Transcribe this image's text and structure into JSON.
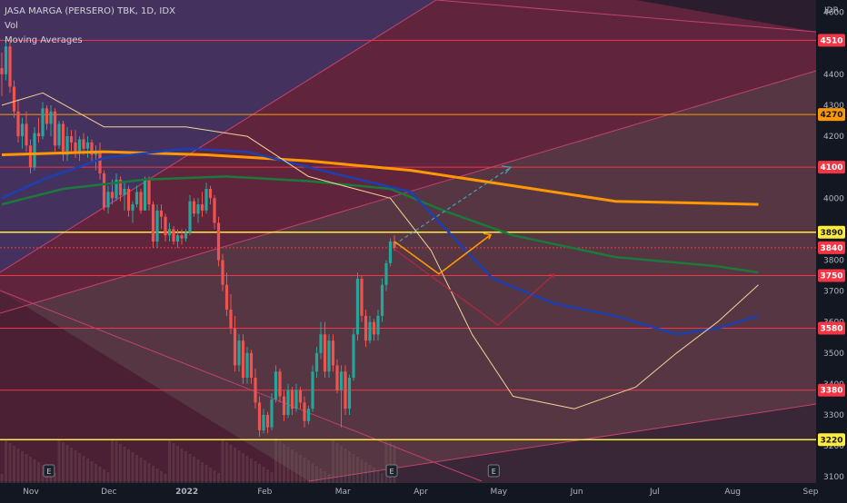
{
  "legend": {
    "title": "JASA MARGA (PERSERO) TBK, 1D, IDX",
    "vol": "Vol",
    "ma": "Moving Averages"
  },
  "currency": "IDR",
  "colors": {
    "background": "#131722",
    "up": "#26a69a",
    "down": "#ef5350",
    "level_red": "#f23645",
    "level_yellow": "#ffeb3b",
    "level_orange": "#ff9800",
    "ma_orange": "#ff9800",
    "ma_blue": "#1e3fb0",
    "ma_green": "#1b7a3a",
    "ma_thin": "#f4d39a",
    "projection_teal": "#4aa3b5",
    "projection_orange": "#ff9800",
    "projection_red": "#b2283c"
  },
  "chart_data": {
    "type": "candlestick",
    "x_labels": [
      "Nov",
      "Dec",
      "2022",
      "Feb",
      "Mar",
      "Apr",
      "May",
      "Jun",
      "Jul",
      "Aug",
      "Sep"
    ],
    "y_ticks": [
      3100,
      3200,
      3300,
      3400,
      3500,
      3600,
      3700,
      3800,
      3900,
      4000,
      4100,
      4200,
      4300,
      4400,
      4500,
      4600
    ],
    "ylim": [
      3080,
      4640
    ],
    "last_price": 3840,
    "levels": [
      {
        "value": 4510,
        "label": "4510",
        "color": "red"
      },
      {
        "value": 4270,
        "label": "4270",
        "color": "orange"
      },
      {
        "value": 4100,
        "label": "4100",
        "color": "red"
      },
      {
        "value": 3890,
        "label": "3890",
        "color": "yellow"
      },
      {
        "value": 3750,
        "label": "3750",
        "color": "red"
      },
      {
        "value": 3580,
        "label": "3580",
        "color": "red"
      },
      {
        "value": 3380,
        "label": "3380",
        "color": "red"
      },
      {
        "value": 3220,
        "label": "3220",
        "color": "yellow"
      }
    ],
    "candles": [
      {
        "o": 4420,
        "h": 4470,
        "l": 4330,
        "c": 4400
      },
      {
        "o": 4400,
        "h": 4510,
        "l": 4380,
        "c": 4490
      },
      {
        "o": 4490,
        "h": 4510,
        "l": 4340,
        "c": 4360
      },
      {
        "o": 4360,
        "h": 4380,
        "l": 4260,
        "c": 4280
      },
      {
        "o": 4280,
        "h": 4320,
        "l": 4180,
        "c": 4200
      },
      {
        "o": 4200,
        "h": 4260,
        "l": 4160,
        "c": 4240
      },
      {
        "o": 4240,
        "h": 4280,
        "l": 4150,
        "c": 4170
      },
      {
        "o": 4170,
        "h": 4190,
        "l": 4080,
        "c": 4100
      },
      {
        "o": 4100,
        "h": 4230,
        "l": 4090,
        "c": 4210
      },
      {
        "o": 4210,
        "h": 4260,
        "l": 4180,
        "c": 4200
      },
      {
        "o": 4200,
        "h": 4310,
        "l": 4190,
        "c": 4290
      },
      {
        "o": 4290,
        "h": 4300,
        "l": 4220,
        "c": 4240
      },
      {
        "o": 4240,
        "h": 4300,
        "l": 4200,
        "c": 4280
      },
      {
        "o": 4280,
        "h": 4290,
        "l": 4150,
        "c": 4170
      },
      {
        "o": 4170,
        "h": 4250,
        "l": 4160,
        "c": 4240
      },
      {
        "o": 4240,
        "h": 4250,
        "l": 4120,
        "c": 4140
      },
      {
        "o": 4140,
        "h": 4230,
        "l": 4120,
        "c": 4200
      },
      {
        "o": 4200,
        "h": 4220,
        "l": 4150,
        "c": 4180
      },
      {
        "o": 4180,
        "h": 4220,
        "l": 4130,
        "c": 4150
      },
      {
        "o": 4150,
        "h": 4200,
        "l": 4120,
        "c": 4190
      },
      {
        "o": 4190,
        "h": 4210,
        "l": 4140,
        "c": 4160
      },
      {
        "o": 4160,
        "h": 4200,
        "l": 4130,
        "c": 4180
      },
      {
        "o": 4180,
        "h": 4190,
        "l": 4120,
        "c": 4140
      },
      {
        "o": 4140,
        "h": 4170,
        "l": 4090,
        "c": 4150
      },
      {
        "o": 4150,
        "h": 4180,
        "l": 4060,
        "c": 4080
      },
      {
        "o": 4080,
        "h": 4090,
        "l": 3960,
        "c": 3970
      },
      {
        "o": 3970,
        "h": 4040,
        "l": 3950,
        "c": 4020
      },
      {
        "o": 4020,
        "h": 4060,
        "l": 3980,
        "c": 4000
      },
      {
        "o": 4000,
        "h": 4080,
        "l": 3990,
        "c": 4060
      },
      {
        "o": 4060,
        "h": 4070,
        "l": 3990,
        "c": 4010
      },
      {
        "o": 4010,
        "h": 4050,
        "l": 3960,
        "c": 4030
      },
      {
        "o": 4030,
        "h": 4040,
        "l": 3940,
        "c": 3960
      },
      {
        "o": 3960,
        "h": 3990,
        "l": 3920,
        "c": 3980
      },
      {
        "o": 3980,
        "h": 4040,
        "l": 3970,
        "c": 4020
      },
      {
        "o": 4020,
        "h": 4030,
        "l": 3950,
        "c": 3960
      },
      {
        "o": 3960,
        "h": 4070,
        "l": 3960,
        "c": 4060
      },
      {
        "o": 4060,
        "h": 4070,
        "l": 3960,
        "c": 3980
      },
      {
        "o": 3980,
        "h": 3990,
        "l": 3840,
        "c": 3860
      },
      {
        "o": 3860,
        "h": 3980,
        "l": 3840,
        "c": 3960
      },
      {
        "o": 3960,
        "h": 3980,
        "l": 3900,
        "c": 3940
      },
      {
        "o": 3940,
        "h": 3950,
        "l": 3860,
        "c": 3880
      },
      {
        "o": 3880,
        "h": 3920,
        "l": 3860,
        "c": 3900
      },
      {
        "o": 3900,
        "h": 3910,
        "l": 3850,
        "c": 3860
      },
      {
        "o": 3860,
        "h": 3900,
        "l": 3840,
        "c": 3880
      },
      {
        "o": 3880,
        "h": 3900,
        "l": 3850,
        "c": 3870
      },
      {
        "o": 3870,
        "h": 3900,
        "l": 3860,
        "c": 3890
      },
      {
        "o": 3890,
        "h": 4010,
        "l": 3880,
        "c": 3990
      },
      {
        "o": 3990,
        "h": 4000,
        "l": 3940,
        "c": 3950
      },
      {
        "o": 3950,
        "h": 4000,
        "l": 3920,
        "c": 3980
      },
      {
        "o": 3980,
        "h": 4020,
        "l": 3940,
        "c": 3960
      },
      {
        "o": 3960,
        "h": 4050,
        "l": 3950,
        "c": 4030
      },
      {
        "o": 4030,
        "h": 4040,
        "l": 3980,
        "c": 4000
      },
      {
        "o": 4000,
        "h": 4010,
        "l": 3900,
        "c": 3920
      },
      {
        "o": 3920,
        "h": 3940,
        "l": 3780,
        "c": 3800
      },
      {
        "o": 3800,
        "h": 3820,
        "l": 3700,
        "c": 3720
      },
      {
        "o": 3720,
        "h": 3760,
        "l": 3620,
        "c": 3640
      },
      {
        "o": 3640,
        "h": 3690,
        "l": 3560,
        "c": 3580
      },
      {
        "o": 3580,
        "h": 3620,
        "l": 3440,
        "c": 3460
      },
      {
        "o": 3460,
        "h": 3560,
        "l": 3440,
        "c": 3540
      },
      {
        "o": 3540,
        "h": 3560,
        "l": 3400,
        "c": 3420
      },
      {
        "o": 3420,
        "h": 3520,
        "l": 3400,
        "c": 3500
      },
      {
        "o": 3500,
        "h": 3510,
        "l": 3400,
        "c": 3420
      },
      {
        "o": 3420,
        "h": 3450,
        "l": 3320,
        "c": 3340
      },
      {
        "o": 3340,
        "h": 3360,
        "l": 3230,
        "c": 3250
      },
      {
        "o": 3250,
        "h": 3320,
        "l": 3240,
        "c": 3300
      },
      {
        "o": 3300,
        "h": 3310,
        "l": 3240,
        "c": 3260
      },
      {
        "o": 3260,
        "h": 3370,
        "l": 3250,
        "c": 3350
      },
      {
        "o": 3350,
        "h": 3460,
        "l": 3340,
        "c": 3440
      },
      {
        "o": 3440,
        "h": 3450,
        "l": 3340,
        "c": 3360
      },
      {
        "o": 3360,
        "h": 3380,
        "l": 3280,
        "c": 3300
      },
      {
        "o": 3300,
        "h": 3400,
        "l": 3290,
        "c": 3380
      },
      {
        "o": 3380,
        "h": 3390,
        "l": 3300,
        "c": 3320
      },
      {
        "o": 3320,
        "h": 3400,
        "l": 3310,
        "c": 3380
      },
      {
        "o": 3380,
        "h": 3390,
        "l": 3320,
        "c": 3340
      },
      {
        "o": 3340,
        "h": 3360,
        "l": 3260,
        "c": 3280
      },
      {
        "o": 3280,
        "h": 3330,
        "l": 3270,
        "c": 3320
      },
      {
        "o": 3320,
        "h": 3460,
        "l": 3310,
        "c": 3440
      },
      {
        "o": 3440,
        "h": 3520,
        "l": 3420,
        "c": 3500
      },
      {
        "o": 3500,
        "h": 3600,
        "l": 3480,
        "c": 3560
      },
      {
        "o": 3560,
        "h": 3600,
        "l": 3420,
        "c": 3440
      },
      {
        "o": 3440,
        "h": 3560,
        "l": 3420,
        "c": 3540
      },
      {
        "o": 3540,
        "h": 3560,
        "l": 3440,
        "c": 3460
      },
      {
        "o": 3460,
        "h": 3480,
        "l": 3370,
        "c": 3380
      },
      {
        "o": 3380,
        "h": 3460,
        "l": 3260,
        "c": 3440
      },
      {
        "o": 3440,
        "h": 3460,
        "l": 3300,
        "c": 3320
      },
      {
        "o": 3320,
        "h": 3430,
        "l": 3300,
        "c": 3420
      },
      {
        "o": 3420,
        "h": 3580,
        "l": 3410,
        "c": 3560
      },
      {
        "o": 3560,
        "h": 3760,
        "l": 3540,
        "c": 3740
      },
      {
        "o": 3740,
        "h": 3750,
        "l": 3600,
        "c": 3620
      },
      {
        "o": 3620,
        "h": 3640,
        "l": 3520,
        "c": 3540
      },
      {
        "o": 3540,
        "h": 3620,
        "l": 3530,
        "c": 3600
      },
      {
        "o": 3600,
        "h": 3610,
        "l": 3540,
        "c": 3560
      },
      {
        "o": 3560,
        "h": 3640,
        "l": 3540,
        "c": 3620
      },
      {
        "o": 3620,
        "h": 3740,
        "l": 3600,
        "c": 3720
      },
      {
        "o": 3720,
        "h": 3800,
        "l": 3700,
        "c": 3790
      },
      {
        "o": 3790,
        "h": 3870,
        "l": 3780,
        "c": 3860
      },
      {
        "o": 3860,
        "h": 3880,
        "l": 3830,
        "c": 3840
      }
    ],
    "moving_averages": [
      {
        "name": "ma_long_orange",
        "color": "ma_orange",
        "width": 3,
        "points": [
          [
            0,
            4140
          ],
          [
            25,
            4150
          ],
          [
            50,
            4140
          ],
          [
            75,
            4120
          ],
          [
            100,
            4090
          ],
          [
            125,
            4040
          ],
          [
            150,
            3990
          ],
          [
            185,
            3980
          ]
        ]
      },
      {
        "name": "ma_mid_green",
        "color": "ma_green",
        "width": 2.5,
        "points": [
          [
            0,
            3980
          ],
          [
            15,
            4030
          ],
          [
            35,
            4060
          ],
          [
            55,
            4070
          ],
          [
            75,
            4055
          ],
          [
            95,
            4030
          ],
          [
            108,
            3960
          ],
          [
            125,
            3880
          ],
          [
            150,
            3810
          ],
          [
            175,
            3780
          ],
          [
            185,
            3760
          ]
        ]
      },
      {
        "name": "ma_mid_blue",
        "color": "ma_blue",
        "width": 2.5,
        "points": [
          [
            0,
            4000
          ],
          [
            10,
            4060
          ],
          [
            25,
            4130
          ],
          [
            45,
            4160
          ],
          [
            60,
            4150
          ],
          [
            75,
            4100
          ],
          [
            100,
            4020
          ],
          [
            110,
            3880
          ],
          [
            120,
            3740
          ],
          [
            135,
            3660
          ],
          [
            150,
            3620
          ],
          [
            165,
            3560
          ],
          [
            175,
            3580
          ],
          [
            185,
            3620
          ]
        ]
      },
      {
        "name": "ma_short_thin",
        "color": "ma_thin",
        "width": 1,
        "points": [
          [
            0,
            4300
          ],
          [
            10,
            4340
          ],
          [
            25,
            4230
          ],
          [
            45,
            4230
          ],
          [
            60,
            4200
          ],
          [
            75,
            4070
          ],
          [
            95,
            4000
          ],
          [
            105,
            3830
          ],
          [
            115,
            3560
          ],
          [
            125,
            3360
          ],
          [
            140,
            3320
          ],
          [
            155,
            3390
          ],
          [
            165,
            3500
          ],
          [
            175,
            3600
          ],
          [
            185,
            3720
          ]
        ]
      }
    ],
    "events": [
      {
        "label": "E",
        "x_fraction": 0.06
      },
      {
        "label": "E",
        "x_fraction": 0.48
      },
      {
        "label": "E",
        "x_fraction": 0.605
      }
    ]
  }
}
